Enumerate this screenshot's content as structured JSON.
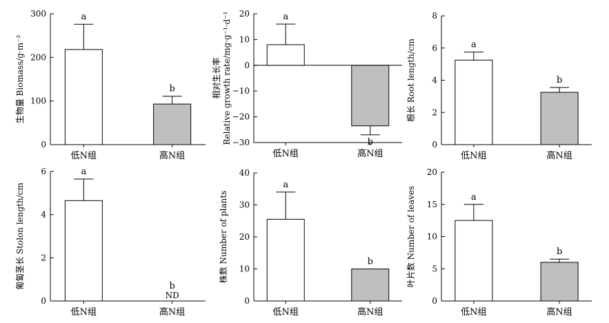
{
  "chart_data": [
    {
      "type": "bar",
      "ylabel": "生物量 Biomass/g·m⁻²",
      "categories": [
        "低N组",
        "高N组"
      ],
      "values": [
        218,
        93
      ],
      "errors": [
        58,
        18
      ],
      "letters": [
        "a",
        "b"
      ],
      "ylim": [
        0,
        300
      ],
      "yticks": [
        "0",
        "100",
        "200",
        "300"
      ]
    },
    {
      "type": "bar",
      "ylabel": "相对生长率 Relative growth rate/mg·g⁻¹·d⁻¹",
      "categories": [
        "低N组",
        "高N组"
      ],
      "values": [
        8,
        -23.5
      ],
      "errors": [
        8,
        3.5
      ],
      "letters": [
        "a",
        "b"
      ],
      "ylim": [
        -30,
        20
      ],
      "yticks": [
        "−30",
        "−20",
        "−10",
        "0",
        "10",
        "20"
      ]
    },
    {
      "type": "bar",
      "ylabel": "根长 Root length/cm",
      "categories": [
        "低N组",
        "高N组"
      ],
      "values": [
        5.25,
        3.25
      ],
      "errors": [
        0.5,
        0.3
      ],
      "letters": [
        "a",
        "b"
      ],
      "ylim": [
        0,
        8
      ],
      "yticks": [
        "0",
        "2",
        "4",
        "6",
        "8"
      ]
    },
    {
      "type": "bar",
      "ylabel": "匍匐茎长 Stolon length/cm",
      "categories": [
        "低N组",
        "高N组"
      ],
      "values": [
        4.65,
        null
      ],
      "errors": [
        1.0,
        null
      ],
      "letters": [
        "a",
        "b"
      ],
      "nd_label": "ND",
      "ylim": [
        0,
        6
      ],
      "yticks": [
        "0",
        "2",
        "4",
        "6"
      ]
    },
    {
      "type": "bar",
      "ylabel": "株数 Number of plants",
      "categories": [
        "低N组",
        "高N组"
      ],
      "values": [
        25.5,
        10
      ],
      "errors": [
        8.5,
        0
      ],
      "letters": [
        "a",
        "b"
      ],
      "ylim": [
        0,
        40
      ],
      "yticks": [
        "0",
        "10",
        "20",
        "30",
        "40"
      ]
    },
    {
      "type": "bar",
      "ylabel": "叶片数 Number of leaves",
      "categories": [
        "低N组",
        "高N组"
      ],
      "values": [
        12.5,
        6
      ],
      "errors": [
        2.5,
        0.5
      ],
      "letters": [
        "a",
        "b"
      ],
      "ylim": [
        0,
        20
      ],
      "yticks": [
        "0",
        "5",
        "10",
        "15",
        "20"
      ]
    }
  ],
  "colors": {
    "low_n_bar": "#ffffff",
    "high_n_bar": "#bfbfc1",
    "stroke": "#000000"
  }
}
